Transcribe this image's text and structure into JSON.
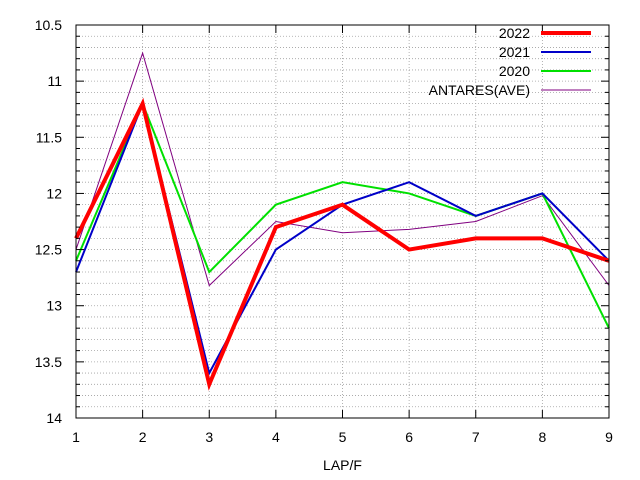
{
  "chart_data": {
    "type": "line",
    "xlabel": "LAP/F",
    "ylabel": "",
    "x": [
      1,
      2,
      3,
      4,
      5,
      6,
      7,
      8,
      9
    ],
    "xticks": [
      "1",
      "2",
      "3",
      "4",
      "5",
      "6",
      "7",
      "8",
      "9"
    ],
    "xlim": [
      1,
      9
    ],
    "ylim": [
      14,
      10.5
    ],
    "y_inverted": true,
    "yticks": [
      "10.5",
      "11",
      "11.5",
      "12",
      "12.5",
      "13",
      "13.5",
      "14"
    ],
    "yminor_step": 0.1,
    "grid": true,
    "legend_position": "top-right",
    "series": [
      {
        "name": "2022",
        "color": "#ff0000",
        "width": "thick",
        "values": [
          12.4,
          11.2,
          13.7,
          12.3,
          12.1,
          12.5,
          12.4,
          12.4,
          12.6
        ]
      },
      {
        "name": "2021",
        "color": "#0000c8",
        "width": "medium",
        "values": [
          12.7,
          11.2,
          13.6,
          12.5,
          12.1,
          11.9,
          12.2,
          12.0,
          12.6
        ]
      },
      {
        "name": "2020",
        "color": "#00e000",
        "width": "medium",
        "values": [
          12.6,
          11.2,
          12.7,
          12.1,
          11.9,
          12.0,
          12.2,
          12.0,
          13.2
        ]
      },
      {
        "name": "ANTARES(AVE)",
        "color": "#800080",
        "width": "thin",
        "values": [
          12.5,
          10.75,
          12.82,
          12.25,
          12.35,
          12.32,
          12.25,
          12.02,
          12.82
        ]
      }
    ]
  }
}
